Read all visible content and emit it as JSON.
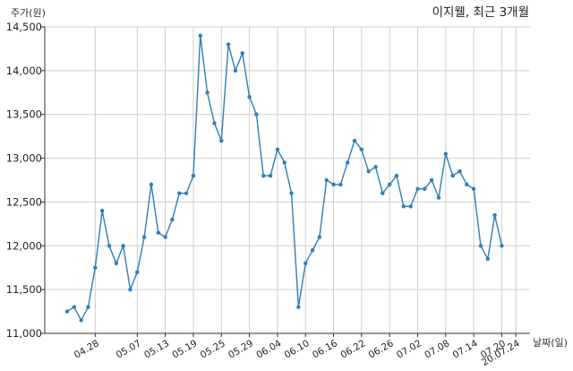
{
  "chart_data": {
    "type": "line",
    "title": "이지웰, 최근 3개월",
    "ylabel": "주가(원)",
    "xlabel": "날짜(일)",
    "ylim": [
      11000,
      14500
    ],
    "yticks": [
      11000,
      11500,
      12000,
      12500,
      13000,
      13500,
      14000,
      14500
    ],
    "ytick_labels": [
      "11,000",
      "11,500",
      "12,000",
      "12,500",
      "13,000",
      "13,500",
      "14,000",
      "14,500"
    ],
    "xtick_labels": [
      "04.28",
      "05.07",
      "05.13",
      "05.19",
      "05.25",
      "05.29",
      "06.04",
      "06.10",
      "06.16",
      "06.22",
      "06.26",
      "07.02",
      "07.08",
      "07.14",
      "07.20",
      "20.07.24"
    ],
    "xtick_indices": [
      4,
      10,
      14,
      18,
      22,
      26,
      30,
      34,
      38,
      42,
      46,
      50,
      54,
      58,
      62,
      64
    ],
    "grid": true,
    "color": "#2e7fb6",
    "series": [
      {
        "name": "",
        "values": [
          11250,
          11300,
          11150,
          11300,
          11750,
          12400,
          12000,
          11800,
          12000,
          11500,
          11700,
          12100,
          12700,
          12150,
          12100,
          12300,
          12600,
          12600,
          12800,
          14400,
          13750,
          13400,
          13200,
          14300,
          14000,
          14200,
          13700,
          13500,
          12800,
          12800,
          13100,
          12950,
          12600,
          11300,
          11800,
          11950,
          12100,
          12750,
          12700,
          12700,
          12950,
          13200,
          13100,
          12850,
          12900,
          12600,
          12700,
          12800,
          12450,
          12450,
          12650,
          12650,
          12750,
          12550,
          13050,
          12800,
          12850,
          12700,
          12650,
          12000,
          11850,
          12350,
          12000
        ]
      }
    ]
  }
}
